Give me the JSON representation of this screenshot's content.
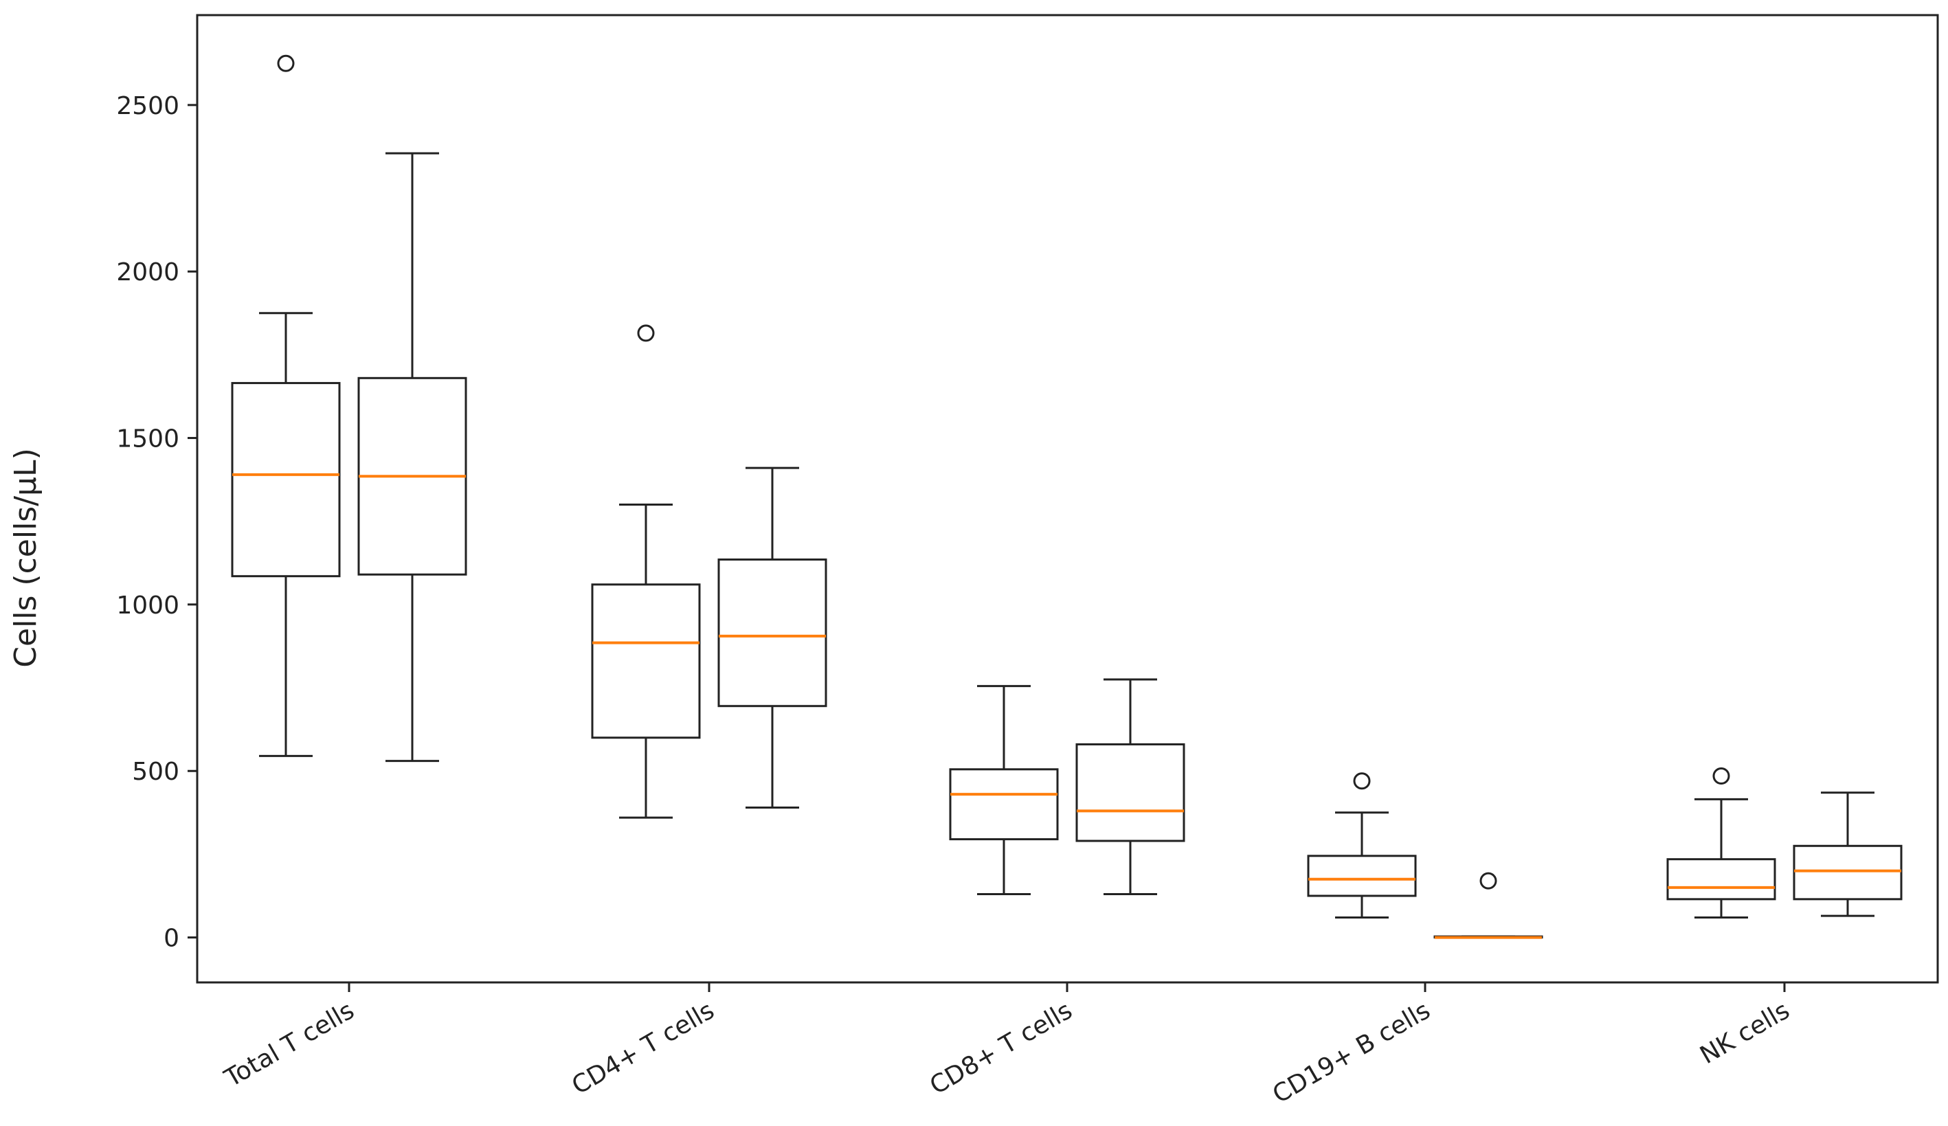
{
  "chart_data": {
    "type": "boxplot",
    "title": "",
    "xlabel": "",
    "ylabel": "Cells (cells/μL)",
    "ylim": [
      -135,
      2770
    ],
    "yticks": [
      0,
      500,
      1000,
      1500,
      2000,
      2500
    ],
    "categories": [
      "Total T cells",
      "CD4+ T cells",
      "CD8+ T cells",
      "CD19+ B cells",
      "NK cells"
    ],
    "boxes_per_category": 2,
    "boxes": [
      {
        "category": "Total T cells",
        "group": 1,
        "whisker_low": 545,
        "q1": 1085,
        "median": 1390,
        "q3": 1665,
        "whisker_high": 1875,
        "outliers": [
          2625
        ]
      },
      {
        "category": "Total T cells",
        "group": 2,
        "whisker_low": 530,
        "q1": 1090,
        "median": 1385,
        "q3": 1680,
        "whisker_high": 2355,
        "outliers": []
      },
      {
        "category": "CD4+ T cells",
        "group": 1,
        "whisker_low": 360,
        "q1": 600,
        "median": 885,
        "q3": 1060,
        "whisker_high": 1300,
        "outliers": [
          1815
        ]
      },
      {
        "category": "CD4+ T cells",
        "group": 2,
        "whisker_low": 390,
        "q1": 695,
        "median": 905,
        "q3": 1135,
        "whisker_high": 1410,
        "outliers": []
      },
      {
        "category": "CD8+ T cells",
        "group": 1,
        "whisker_low": 130,
        "q1": 295,
        "median": 430,
        "q3": 505,
        "whisker_high": 755,
        "outliers": []
      },
      {
        "category": "CD8+ T cells",
        "group": 2,
        "whisker_low": 130,
        "q1": 290,
        "median": 380,
        "q3": 580,
        "whisker_high": 775,
        "outliers": []
      },
      {
        "category": "CD19+ B cells",
        "group": 1,
        "whisker_low": 60,
        "q1": 125,
        "median": 175,
        "q3": 245,
        "whisker_high": 375,
        "outliers": [
          470
        ]
      },
      {
        "category": "CD19+ B cells",
        "group": 2,
        "whisker_low": 0,
        "q1": 0,
        "median": 0,
        "q3": 3,
        "whisker_high": 3,
        "outliers": [
          170
        ]
      },
      {
        "category": "NK cells",
        "group": 1,
        "whisker_low": 60,
        "q1": 115,
        "median": 150,
        "q3": 235,
        "whisker_high": 415,
        "outliers": [
          485
        ]
      },
      {
        "category": "NK cells",
        "group": 2,
        "whisker_low": 65,
        "q1": 115,
        "median": 200,
        "q3": 275,
        "whisker_high": 435,
        "outliers": []
      }
    ],
    "colors": {
      "box": "#222222",
      "median": "#ff7f0e",
      "axis": "#222222",
      "background": "#ffffff"
    }
  }
}
